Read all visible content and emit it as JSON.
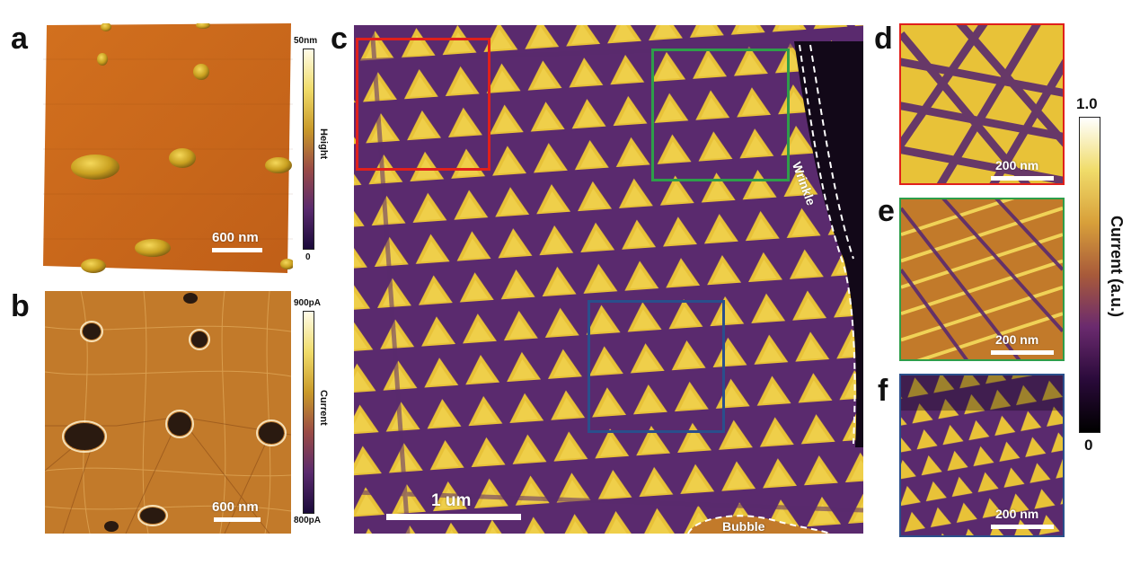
{
  "panels": {
    "a": {
      "label": "a",
      "colorbar_max": "50nm",
      "colorbar_min": "0",
      "colorbar_title": "Height",
      "scale_text": "600 nm"
    },
    "b": {
      "label": "b",
      "colorbar_max": "900pA",
      "colorbar_min": "800pA",
      "colorbar_title": "Current",
      "scale_text": "600 nm"
    },
    "c": {
      "label": "c",
      "scale_text": "1 um",
      "wrinkle_label": "Wrinkle",
      "bubble_label": "Bubble"
    },
    "d": {
      "label": "d",
      "scale_text": "200 nm"
    },
    "e": {
      "label": "e",
      "scale_text": "200 nm"
    },
    "f": {
      "label": "f",
      "scale_text": "200 nm"
    }
  },
  "current_colorbar": {
    "max": "1.0",
    "min": "0",
    "title": "Current (a.u.)"
  },
  "colors": {
    "box_d": "#e0201c",
    "box_e": "#2e9e4a",
    "box_f": "#2a4f8c",
    "afm_orange": "#c8681c",
    "domain_yellow": "#e8c238",
    "wall_purple": "#5a2a6e"
  }
}
